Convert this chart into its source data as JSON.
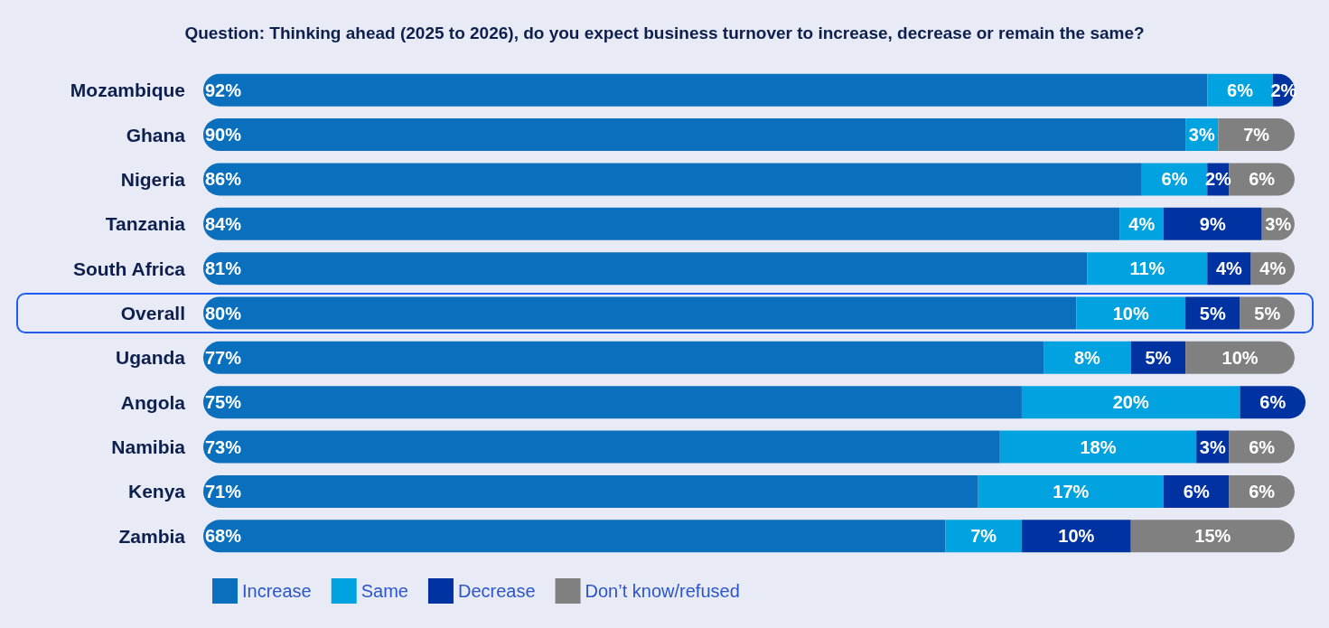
{
  "chart_data": {
    "type": "bar",
    "orientation": "horizontal",
    "stacked": true,
    "title": "Question: Thinking ahead (2025 to 2026), do you expect business turnover to increase, decrease or remain the same?",
    "categories": [
      "Mozambique",
      "Ghana",
      "Nigeria",
      "Tanzania",
      "South Africa",
      "Overall",
      "Uganda",
      "Angola",
      "Namibia",
      "Kenya",
      "Zambia"
    ],
    "series": [
      {
        "name": "Increase",
        "color": "#0a6fbd",
        "values": [
          92,
          90,
          86,
          84,
          81,
          80,
          77,
          75,
          73,
          71,
          68
        ],
        "value_labels": [
          "92%",
          "90%",
          "86%",
          "84%",
          "81%",
          "80%",
          "77%",
          "75%",
          "73%",
          "71%",
          "68%"
        ]
      },
      {
        "name": "Same",
        "color": "#00a3df",
        "values": [
          6,
          3,
          6,
          4,
          11,
          10,
          8,
          20,
          18,
          17,
          7
        ],
        "value_labels": [
          "6%",
          "3%",
          "6%",
          "4%",
          "11%",
          "10%",
          "8%",
          "20%",
          "18%",
          "17%",
          "7%"
        ]
      },
      {
        "name": "Decrease",
        "color": "#0033a1",
        "values": [
          2,
          null,
          2,
          9,
          4,
          5,
          5,
          6,
          3,
          6,
          10
        ],
        "value_labels": [
          "2%",
          null,
          "2%",
          "9%",
          "4%",
          "5%",
          "5%",
          "6%",
          "3%",
          "6%",
          "10%"
        ]
      },
      {
        "name": "Don’t know/refused",
        "color": "#808080",
        "values": [
          null,
          7,
          6,
          3,
          4,
          5,
          10,
          null,
          6,
          6,
          15
        ],
        "value_labels": [
          null,
          "7%",
          "6%",
          "3%",
          "4%",
          "5%",
          "10%",
          null,
          "6%",
          "6%",
          "15%"
        ]
      }
    ],
    "legend": "bottom left",
    "grid": false
  }
}
